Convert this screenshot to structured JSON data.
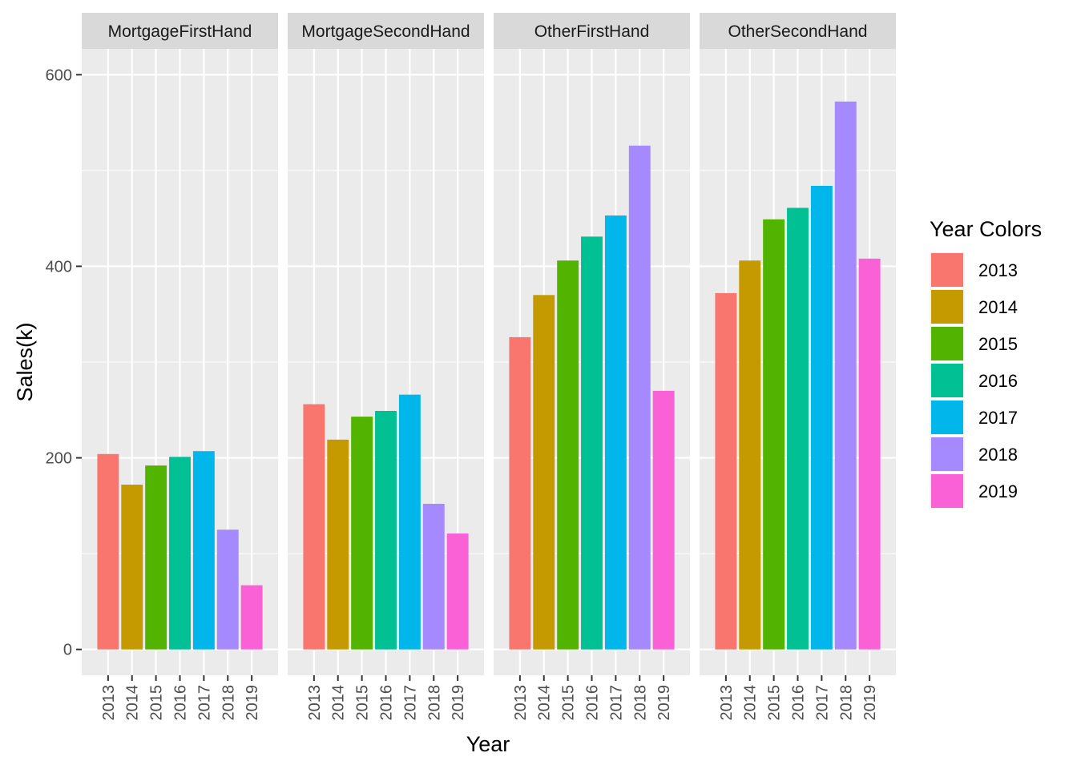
{
  "chart_data": {
    "type": "bar",
    "facet_by": "panel",
    "xlabel": "Year",
    "ylabel": "Sales(k)",
    "ylim": [
      -27,
      627
    ],
    "y_ticks": [
      0,
      200,
      400,
      600
    ],
    "y_tick_labels": [
      "0",
      "200",
      "400",
      "600"
    ],
    "categories": [
      "2013",
      "2014",
      "2015",
      "2016",
      "2017",
      "2018",
      "2019"
    ],
    "x_tick_orientation": "vertical",
    "grid": true,
    "panel_background": "#EBEBEB",
    "strip_background": "#D9D9D9",
    "legend": {
      "title": "Year Colors",
      "position": "right",
      "entries": [
        "2013",
        "2014",
        "2015",
        "2016",
        "2017",
        "2018",
        "2019"
      ]
    },
    "colors": {
      "2013": "#F8766D",
      "2014": "#C49A00",
      "2015": "#53B400",
      "2016": "#00C094",
      "2017": "#00B6EB",
      "2018": "#A58AFF",
      "2019": "#FB61D7"
    },
    "panels": [
      {
        "name": "MortgageFirstHand",
        "values": [
          204,
          172,
          192,
          201,
          207,
          125,
          67
        ]
      },
      {
        "name": "MortgageSecondHand",
        "values": [
          256,
          219,
          243,
          249,
          266,
          152,
          121
        ]
      },
      {
        "name": "OtherFirstHand",
        "values": [
          326,
          370,
          406,
          431,
          453,
          526,
          270
        ]
      },
      {
        "name": "OtherSecondHand",
        "values": [
          372,
          406,
          449,
          461,
          484,
          572,
          408
        ]
      }
    ]
  }
}
